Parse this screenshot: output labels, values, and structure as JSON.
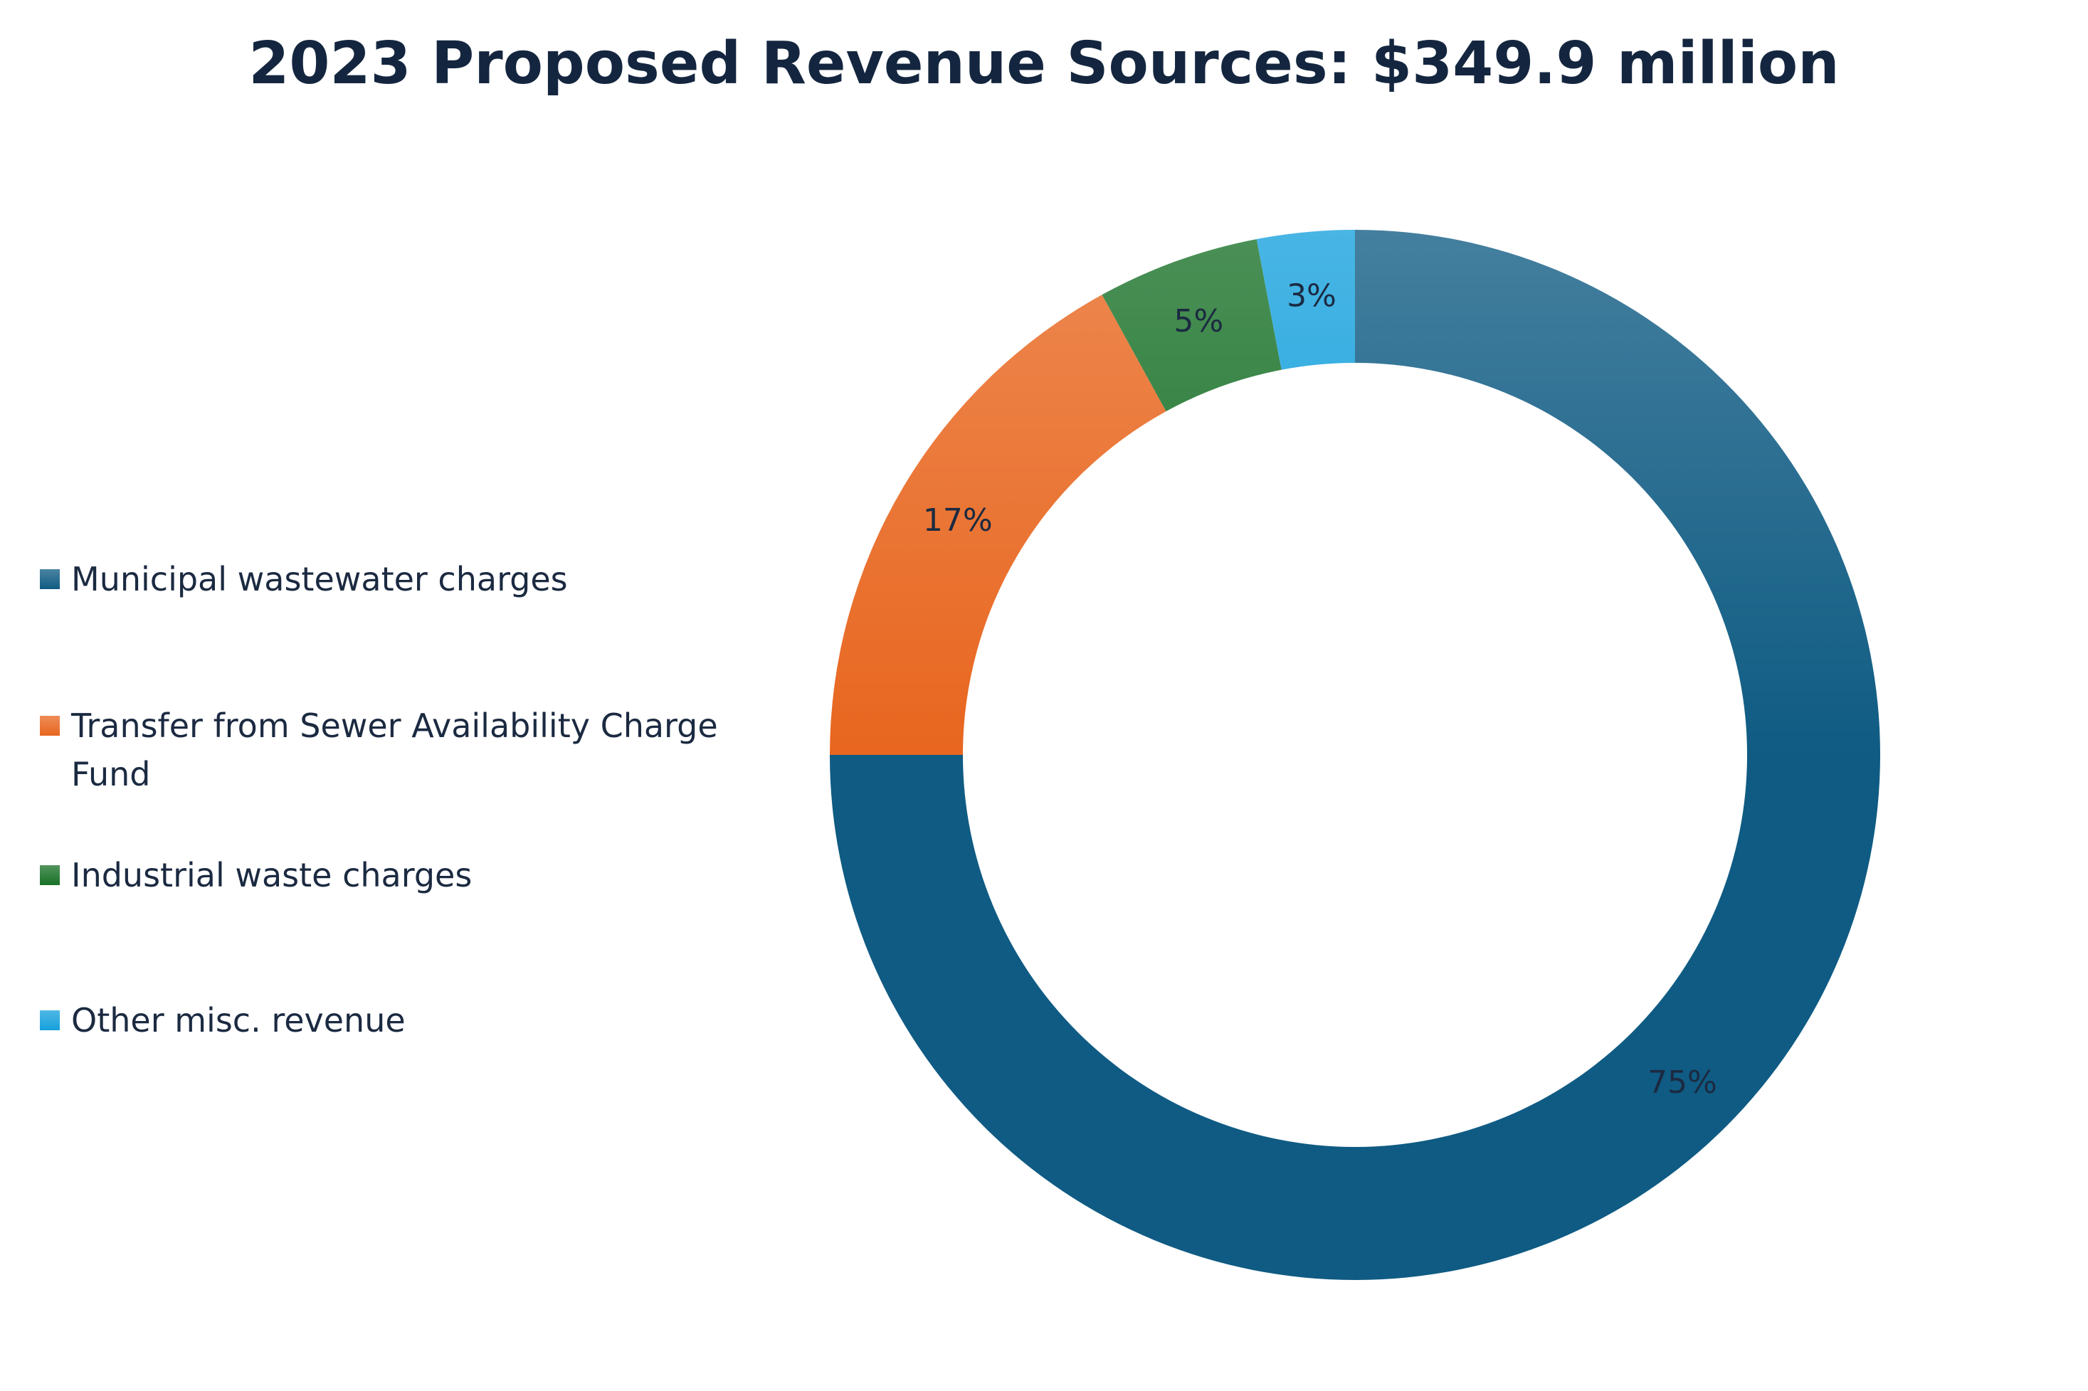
{
  "chart_data": {
    "type": "pie",
    "variant": "donut",
    "title": "2023 Proposed Revenue Sources: $349.9 million",
    "categories": [
      "Municipal wastewater charges",
      "Transfer from Sewer Availability Charge Fund",
      "Industrial waste charges",
      "Other misc. revenue"
    ],
    "values": [
      75,
      17,
      5,
      3
    ],
    "data_labels": [
      "75%",
      "17%",
      "5%",
      "3%"
    ],
    "colors": [
      "#0f5b83",
      "#e8661f",
      "#187127",
      "#15a0dc"
    ],
    "legend_position": "left",
    "start_angle": "12 o'clock, clockwise"
  }
}
